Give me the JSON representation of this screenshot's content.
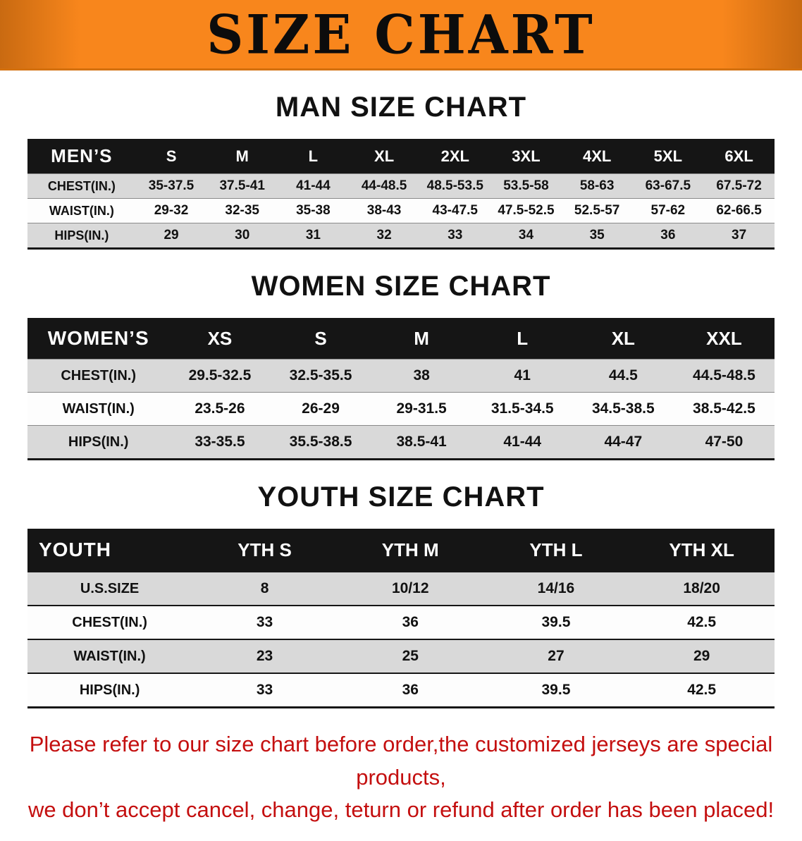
{
  "banner": {
    "title": "SIZE CHART"
  },
  "colors": {
    "banner_orange": "#f8861c",
    "header_bg": "#151515",
    "header_text": "#ffffff",
    "stripe_gray": "#d9d9d9",
    "note_red": "#c40f0f"
  },
  "sections": [
    {
      "id": "men",
      "heading": "MAN SIZE CHART",
      "header_label": "MEN’S",
      "columns": [
        "S",
        "M",
        "L",
        "XL",
        "2XL",
        "3XL",
        "4XL",
        "5XL",
        "6XL"
      ],
      "rows": [
        {
          "label": "CHEST(IN.)",
          "values": [
            "35-37.5",
            "37.5-41",
            "41-44",
            "44-48.5",
            "48.5-53.5",
            "53.5-58",
            "58-63",
            "63-67.5",
            "67.5-72"
          ]
        },
        {
          "label": "WAIST(IN.)",
          "values": [
            "29-32",
            "32-35",
            "35-38",
            "38-43",
            "43-47.5",
            "47.5-52.5",
            "52.5-57",
            "57-62",
            "62-66.5"
          ]
        },
        {
          "label": "HIPS(IN.)",
          "values": [
            "29",
            "30",
            "31",
            "32",
            "33",
            "34",
            "35",
            "36",
            "37"
          ]
        }
      ]
    },
    {
      "id": "women",
      "heading": "WOMEN SIZE CHART",
      "header_label": "WOMEN’S",
      "columns": [
        "XS",
        "S",
        "M",
        "L",
        "XL",
        "XXL"
      ],
      "rows": [
        {
          "label": "CHEST(IN.)",
          "values": [
            "29.5-32.5",
            "32.5-35.5",
            "38",
            "41",
            "44.5",
            "44.5-48.5"
          ]
        },
        {
          "label": "WAIST(IN.)",
          "values": [
            "23.5-26",
            "26-29",
            "29-31.5",
            "31.5-34.5",
            "34.5-38.5",
            "38.5-42.5"
          ]
        },
        {
          "label": "HIPS(IN.)",
          "values": [
            "33-35.5",
            "35.5-38.5",
            "38.5-41",
            "41-44",
            "44-47",
            "47-50"
          ]
        }
      ]
    },
    {
      "id": "youth",
      "heading": "YOUTH SIZE CHART",
      "header_label": "YOUTH",
      "columns": [
        "YTH S",
        "YTH M",
        "YTH L",
        "YTH XL"
      ],
      "rows": [
        {
          "label": "U.S.SIZE",
          "values": [
            "8",
            "10/12",
            "14/16",
            "18/20"
          ]
        },
        {
          "label": "CHEST(IN.)",
          "values": [
            "33",
            "36",
            "39.5",
            "42.5"
          ]
        },
        {
          "label": "WAIST(IN.)",
          "values": [
            "23",
            "25",
            "27",
            "29"
          ]
        },
        {
          "label": "HIPS(IN.)",
          "values": [
            "33",
            "36",
            "39.5",
            "42.5"
          ]
        }
      ]
    }
  ],
  "footer": {
    "lines": [
      "Please refer to our size chart before order,the customized jerseys are special products,",
      "we don’t accept cancel, change, teturn or refund after order has been placed!"
    ]
  }
}
